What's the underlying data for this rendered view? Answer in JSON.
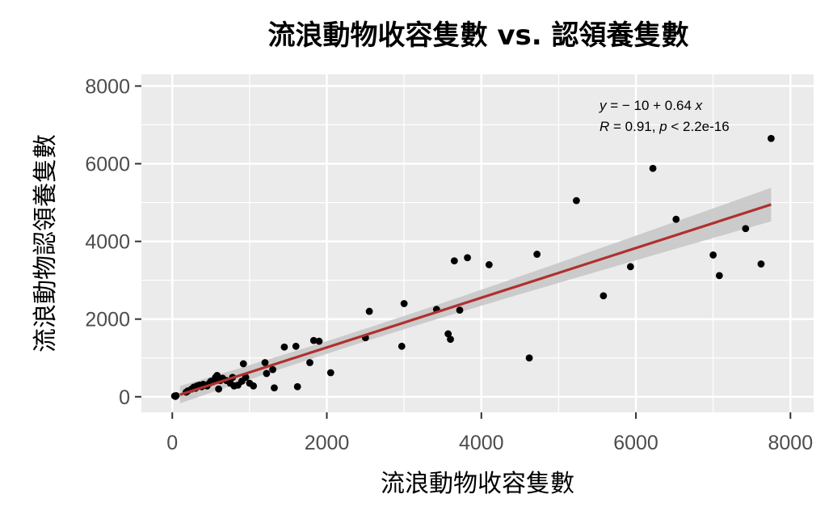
{
  "chart_data": {
    "type": "scatter",
    "title": "流浪動物收容隻數 vs. 認領養隻數",
    "xlabel": "流浪動物收容隻數",
    "ylabel": "流浪動物認領養隻數",
    "xlim": [
      -400,
      8300
    ],
    "ylim": [
      -400,
      8300
    ],
    "xticks": [
      0,
      2000,
      4000,
      6000,
      8000
    ],
    "yticks": [
      0,
      2000,
      4000,
      6000,
      8000
    ],
    "grid": true,
    "points": [
      [
        30,
        20
      ],
      [
        40,
        10
      ],
      [
        50,
        30
      ],
      [
        180,
        120
      ],
      [
        200,
        150
      ],
      [
        250,
        200
      ],
      [
        280,
        250
      ],
      [
        300,
        220
      ],
      [
        320,
        280
      ],
      [
        350,
        300
      ],
      [
        380,
        260
      ],
      [
        400,
        320
      ],
      [
        450,
        280
      ],
      [
        480,
        350
      ],
      [
        500,
        400
      ],
      [
        520,
        380
      ],
      [
        550,
        450
      ],
      [
        560,
        500
      ],
      [
        580,
        550
      ],
      [
        600,
        200
      ],
      [
        620,
        420
      ],
      [
        650,
        480
      ],
      [
        700,
        420
      ],
      [
        750,
        350
      ],
      [
        780,
        500
      ],
      [
        800,
        280
      ],
      [
        850,
        300
      ],
      [
        900,
        400
      ],
      [
        920,
        850
      ],
      [
        950,
        500
      ],
      [
        1000,
        350
      ],
      [
        1050,
        280
      ],
      [
        1200,
        880
      ],
      [
        1220,
        600
      ],
      [
        1300,
        700
      ],
      [
        1320,
        230
      ],
      [
        1450,
        1280
      ],
      [
        1600,
        1300
      ],
      [
        1620,
        260
      ],
      [
        1780,
        880
      ],
      [
        1830,
        1450
      ],
      [
        1900,
        1430
      ],
      [
        2050,
        620
      ],
      [
        2500,
        1520
      ],
      [
        2550,
        2200
      ],
      [
        2970,
        1300
      ],
      [
        3000,
        2400
      ],
      [
        3420,
        2250
      ],
      [
        3570,
        1620
      ],
      [
        3600,
        1480
      ],
      [
        3650,
        3500
      ],
      [
        3720,
        2230
      ],
      [
        3820,
        3580
      ],
      [
        4100,
        3400
      ],
      [
        4620,
        1000
      ],
      [
        4720,
        3670
      ],
      [
        5230,
        5050
      ],
      [
        5580,
        2600
      ],
      [
        5930,
        3350
      ],
      [
        6220,
        5880
      ],
      [
        6520,
        4570
      ],
      [
        7000,
        3650
      ],
      [
        7080,
        3120
      ],
      [
        7420,
        4330
      ],
      [
        7620,
        3420
      ],
      [
        7750,
        6650
      ]
    ],
    "fit": {
      "method": "lm",
      "intercept": -10,
      "slope": 0.64,
      "x_range": [
        100,
        7750
      ],
      "color": "#b03030",
      "ribbon_color": "#c8c8c8"
    },
    "annotation": {
      "equation": {
        "y": "y",
        "eq": " = − 10 + 0.64 ",
        "x": "x"
      },
      "stats": {
        "r": "R",
        "r_val": " = 0.91, ",
        "p": "p",
        "p_val": " < 2.2e-16"
      }
    },
    "point_color": "#000000",
    "panel_background": "#ebebeb",
    "grid_color": "#ffffff"
  }
}
